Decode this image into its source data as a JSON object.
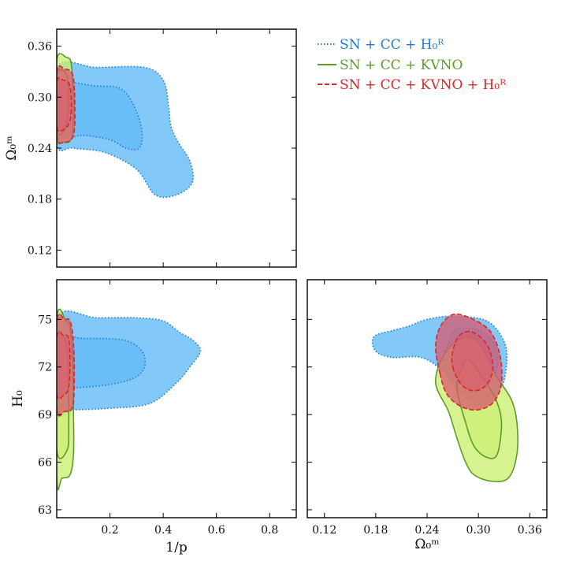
{
  "chart_data": {
    "type": "contour-corner-plot",
    "legend": {
      "position": "top-right",
      "entries": [
        {
          "name": "SN + CC + H₀ᴿ",
          "color": "#1f7ad4",
          "fill": "#58b6f5",
          "line": "dotted"
        },
        {
          "name": "SN + CC + KVNO",
          "color": "#5e9a2e",
          "fill": "#c9ef6b",
          "line": "solid"
        },
        {
          "name": "SN + CC + KVNO + H₀ᴿ",
          "color": "#d62728",
          "fill": "#d8586f",
          "line": "dashed"
        }
      ]
    },
    "panels": [
      {
        "id": "omega-vs-invp",
        "xlabel": "",
        "ylabel": "Ω₀ᵐ",
        "xlim": [
          0,
          0.9
        ],
        "ylim": [
          0.1,
          0.38
        ],
        "yticks": [
          "0.12",
          "0.18",
          "0.24",
          "0.30",
          "0.36"
        ],
        "yticks_values": [
          0.12,
          0.18,
          0.24,
          0.3,
          0.36
        ],
        "xticks_values": [
          0.2,
          0.4,
          0.6,
          0.8
        ]
      },
      {
        "id": "h0-vs-invp",
        "xlabel": "1/p",
        "ylabel": "H₀",
        "xlim": [
          0,
          0.9
        ],
        "ylim": [
          62.5,
          77.5
        ],
        "xticks": [
          "0.2",
          "0.4",
          "0.6",
          "0.8"
        ],
        "xticks_values": [
          0.2,
          0.4,
          0.6,
          0.8
        ],
        "yticks": [
          "63",
          "66",
          "69",
          "72",
          "75"
        ],
        "yticks_values": [
          63,
          66,
          69,
          72,
          75
        ]
      },
      {
        "id": "h0-vs-omega",
        "xlabel": "Ω₀ᵐ",
        "ylabel": "",
        "xlim": [
          0.1,
          0.38
        ],
        "ylim": [
          62.5,
          77.5
        ],
        "xticks": [
          "0.12",
          "0.18",
          "0.24",
          "0.30",
          "0.36"
        ],
        "xticks_values": [
          0.12,
          0.18,
          0.24,
          0.3,
          0.36
        ],
        "yticks_values": [
          63,
          66,
          69,
          72,
          75
        ]
      }
    ],
    "contours": [
      {
        "panel": "omega-vs-invp",
        "series": "SN + CC + H₀ᴿ",
        "level": "2σ",
        "points": [
          [
            0.0,
            0.245
          ],
          [
            0.06,
            0.24
          ],
          [
            0.18,
            0.235
          ],
          [
            0.3,
            0.215
          ],
          [
            0.37,
            0.185
          ],
          [
            0.45,
            0.185
          ],
          [
            0.51,
            0.2
          ],
          [
            0.5,
            0.225
          ],
          [
            0.46,
            0.245
          ],
          [
            0.43,
            0.265
          ],
          [
            0.42,
            0.29
          ],
          [
            0.4,
            0.32
          ],
          [
            0.33,
            0.335
          ],
          [
            0.15,
            0.335
          ],
          [
            0.0,
            0.335
          ]
        ]
      },
      {
        "panel": "omega-vs-invp",
        "series": "SN + CC + H₀ᴿ",
        "level": "1σ",
        "points": [
          [
            0.0,
            0.255
          ],
          [
            0.1,
            0.255
          ],
          [
            0.2,
            0.25
          ],
          [
            0.26,
            0.24
          ],
          [
            0.31,
            0.24
          ],
          [
            0.32,
            0.26
          ],
          [
            0.29,
            0.29
          ],
          [
            0.24,
            0.31
          ],
          [
            0.15,
            0.313
          ],
          [
            0.0,
            0.313
          ]
        ]
      },
      {
        "panel": "omega-vs-invp",
        "series": "SN + CC + KVNO",
        "level": "2σ",
        "points": [
          [
            0.0,
            0.255
          ],
          [
            0.025,
            0.247
          ],
          [
            0.055,
            0.252
          ],
          [
            0.062,
            0.29
          ],
          [
            0.055,
            0.338
          ],
          [
            0.035,
            0.347
          ],
          [
            0.0,
            0.343
          ]
        ]
      },
      {
        "panel": "omega-vs-invp",
        "series": "SN + CC + KVNO",
        "level": "1σ",
        "points": [
          [
            0.0,
            0.262
          ],
          [
            0.03,
            0.262
          ],
          [
            0.044,
            0.29
          ],
          [
            0.038,
            0.325
          ],
          [
            0.0,
            0.327
          ]
        ]
      },
      {
        "panel": "omega-vs-invp",
        "series": "SN + CC + KVNO + H₀ᴿ",
        "level": "2σ",
        "points": [
          [
            0.0,
            0.255
          ],
          [
            0.03,
            0.247
          ],
          [
            0.063,
            0.255
          ],
          [
            0.068,
            0.29
          ],
          [
            0.06,
            0.326
          ],
          [
            0.03,
            0.333
          ],
          [
            0.0,
            0.33
          ]
        ]
      },
      {
        "panel": "omega-vs-invp",
        "series": "SN + CC + KVNO + H₀ᴿ",
        "level": "1σ",
        "points": [
          [
            0.0,
            0.265
          ],
          [
            0.028,
            0.262
          ],
          [
            0.05,
            0.272
          ],
          [
            0.055,
            0.293
          ],
          [
            0.048,
            0.315
          ],
          [
            0.025,
            0.32
          ],
          [
            0.0,
            0.318
          ]
        ]
      },
      {
        "panel": "h0-vs-invp",
        "series": "SN + CC + H₀ᴿ",
        "level": "2σ",
        "points": [
          [
            0.0,
            69.3
          ],
          [
            0.07,
            69.3
          ],
          [
            0.2,
            69.4
          ],
          [
            0.35,
            69.7
          ],
          [
            0.45,
            71.0
          ],
          [
            0.5,
            72.0
          ],
          [
            0.54,
            73.0
          ],
          [
            0.51,
            73.7
          ],
          [
            0.46,
            74.2
          ],
          [
            0.4,
            74.9
          ],
          [
            0.3,
            75.1
          ],
          [
            0.15,
            75.1
          ],
          [
            0.0,
            75.1
          ]
        ]
      },
      {
        "panel": "h0-vs-invp",
        "series": "SN + CC + H₀ᴿ",
        "level": "1σ",
        "points": [
          [
            0.0,
            70.7
          ],
          [
            0.08,
            70.7
          ],
          [
            0.2,
            70.9
          ],
          [
            0.29,
            71.3
          ],
          [
            0.33,
            72.0
          ],
          [
            0.32,
            73.0
          ],
          [
            0.25,
            73.7
          ],
          [
            0.1,
            73.8
          ],
          [
            0.0,
            73.8
          ]
        ]
      },
      {
        "panel": "h0-vs-invp",
        "series": "SN + CC + KVNO",
        "level": "2σ",
        "points": [
          [
            0.0,
            65.0
          ],
          [
            0.02,
            65.0
          ],
          [
            0.05,
            65.2
          ],
          [
            0.063,
            66.5
          ],
          [
            0.063,
            69.0
          ],
          [
            0.06,
            72.0
          ],
          [
            0.05,
            74.5
          ],
          [
            0.035,
            74.9
          ],
          [
            0.0,
            74.9
          ]
        ]
      },
      {
        "panel": "h0-vs-invp",
        "series": "SN + CC + KVNO",
        "level": "1σ",
        "points": [
          [
            0.0,
            66.8
          ],
          [
            0.04,
            66.8
          ],
          [
            0.045,
            68.5
          ],
          [
            0.043,
            71.5
          ],
          [
            0.035,
            73.5
          ],
          [
            0.0,
            73.7
          ]
        ]
      },
      {
        "panel": "h0-vs-invp",
        "series": "SN + CC + KVNO + H₀ᴿ",
        "level": "2σ",
        "points": [
          [
            0.0,
            69.4
          ],
          [
            0.03,
            69.2
          ],
          [
            0.06,
            69.5
          ],
          [
            0.066,
            71.5
          ],
          [
            0.062,
            73.7
          ],
          [
            0.05,
            74.9
          ],
          [
            0.03,
            75.0
          ],
          [
            0.0,
            74.9
          ]
        ]
      },
      {
        "panel": "h0-vs-invp",
        "series": "SN + CC + KVNO + H₀ᴿ",
        "level": "1σ",
        "points": [
          [
            0.0,
            70.3
          ],
          [
            0.025,
            70.2
          ],
          [
            0.045,
            70.7
          ],
          [
            0.05,
            72.2
          ],
          [
            0.045,
            73.8
          ],
          [
            0.025,
            74.0
          ],
          [
            0.0,
            73.9
          ]
        ]
      },
      {
        "panel": "h0-vs-omega",
        "series": "SN + CC + H₀ᴿ",
        "level": "2σ",
        "points": [
          [
            0.2,
            72.6
          ],
          [
            0.233,
            72.6
          ],
          [
            0.257,
            71.8
          ],
          [
            0.275,
            70.6
          ],
          [
            0.295,
            69.6
          ],
          [
            0.315,
            69.8
          ],
          [
            0.328,
            70.8
          ],
          [
            0.333,
            72.3
          ],
          [
            0.33,
            73.6
          ],
          [
            0.31,
            74.9
          ],
          [
            0.27,
            75.2
          ],
          [
            0.24,
            75.0
          ],
          [
            0.22,
            74.6
          ],
          [
            0.2,
            74.3
          ],
          [
            0.18,
            74.0
          ],
          [
            0.176,
            73.5
          ],
          [
            0.182,
            72.9
          ]
        ]
      },
      {
        "panel": "h0-vs-omega",
        "series": "SN + CC + H₀ᴿ",
        "level": "1σ",
        "points": [
          [
            0.26,
            72.0
          ],
          [
            0.285,
            70.6
          ],
          [
            0.31,
            70.8
          ],
          [
            0.322,
            72.0
          ],
          [
            0.318,
            73.5
          ],
          [
            0.3,
            74.3
          ],
          [
            0.275,
            74.4
          ],
          [
            0.265,
            73.5
          ]
        ]
      },
      {
        "panel": "h0-vs-omega",
        "series": "SN + CC + KVNO",
        "level": "2σ",
        "points": [
          [
            0.25,
            71.0
          ],
          [
            0.265,
            69.2
          ],
          [
            0.275,
            67.5
          ],
          [
            0.285,
            66.0
          ],
          [
            0.295,
            65.2
          ],
          [
            0.315,
            64.8
          ],
          [
            0.335,
            65.0
          ],
          [
            0.345,
            66.5
          ],
          [
            0.345,
            68.5
          ],
          [
            0.338,
            70.0
          ],
          [
            0.32,
            71.5
          ],
          [
            0.3,
            73.6
          ],
          [
            0.28,
            73.8
          ],
          [
            0.26,
            72.8
          ]
        ]
      },
      {
        "panel": "h0-vs-omega",
        "series": "SN + CC + KVNO",
        "level": "1σ",
        "points": [
          [
            0.275,
            70.6
          ],
          [
            0.285,
            68.5
          ],
          [
            0.295,
            67.0
          ],
          [
            0.31,
            66.3
          ],
          [
            0.322,
            66.5
          ],
          [
            0.327,
            68.5
          ],
          [
            0.32,
            70.0
          ],
          [
            0.305,
            71.3
          ],
          [
            0.288,
            72.5
          ],
          [
            0.28,
            71.8
          ]
        ]
      },
      {
        "panel": "h0-vs-omega",
        "series": "SN + CC + KVNO + H₀ᴿ",
        "level": "2σ",
        "points": [
          [
            0.255,
            71.6
          ],
          [
            0.263,
            70.3
          ],
          [
            0.28,
            69.5
          ],
          [
            0.3,
            69.3
          ],
          [
            0.318,
            69.8
          ],
          [
            0.327,
            71.0
          ],
          [
            0.325,
            72.8
          ],
          [
            0.313,
            74.3
          ],
          [
            0.29,
            75.1
          ],
          [
            0.27,
            75.3
          ],
          [
            0.255,
            74.5
          ],
          [
            0.25,
            73.2
          ]
        ]
      },
      {
        "panel": "h0-vs-omega",
        "series": "SN + CC + KVNO + H₀ᴿ",
        "level": "1σ",
        "points": [
          [
            0.27,
            72.0
          ],
          [
            0.28,
            70.9
          ],
          [
            0.295,
            70.5
          ],
          [
            0.31,
            70.9
          ],
          [
            0.317,
            72.0
          ],
          [
            0.31,
            73.4
          ],
          [
            0.293,
            74.2
          ],
          [
            0.278,
            74.0
          ],
          [
            0.27,
            73.0
          ]
        ]
      }
    ]
  }
}
